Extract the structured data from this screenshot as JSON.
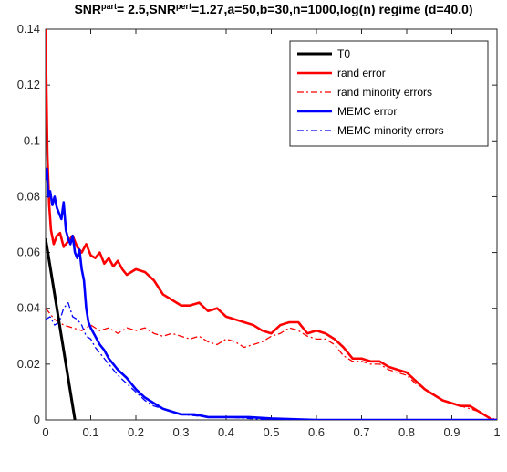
{
  "chart_data": {
    "type": "line",
    "title_parts": {
      "snr": "SNR",
      "part_sup": "part",
      "middle": "= 2.5,SNR",
      "perf_sup": "perf",
      "tail": "=1.27,a=50,b=30,n=1000,log(n) regime (d=40.0)"
    },
    "xlabel": "",
    "ylabel": "",
    "xlim": [
      0,
      1
    ],
    "ylim": [
      0,
      0.14
    ],
    "x_ticks": [
      0,
      0.1,
      0.2,
      0.3,
      0.4,
      0.5,
      0.6,
      0.7,
      0.8,
      0.9,
      1
    ],
    "x_tick_labels": [
      "0",
      "0.1",
      "0.2",
      "0.3",
      "0.4",
      "0.5",
      "0.6",
      "0.7",
      "0.8",
      "0.9",
      "1"
    ],
    "y_ticks": [
      0,
      0.02,
      0.04,
      0.06,
      0.08,
      0.1,
      0.12,
      0.14
    ],
    "y_tick_labels": [
      "0",
      "0.02",
      "0.04",
      "0.06",
      "0.08",
      "0.1",
      "0.12",
      "0.14"
    ],
    "grid": false,
    "legend_position": "top-right",
    "series": [
      {
        "name": "T0",
        "color": "#000000",
        "style": "solid",
        "x": [
          0,
          0.065
        ],
        "y": [
          0.065,
          0
        ]
      },
      {
        "name": "rand error",
        "color": "#ff0000",
        "style": "solid",
        "x": [
          0,
          0.004,
          0.008,
          0.012,
          0.018,
          0.025,
          0.032,
          0.04,
          0.05,
          0.06,
          0.07,
          0.08,
          0.09,
          0.1,
          0.11,
          0.12,
          0.13,
          0.14,
          0.15,
          0.16,
          0.17,
          0.18,
          0.2,
          0.22,
          0.24,
          0.26,
          0.28,
          0.3,
          0.32,
          0.34,
          0.36,
          0.38,
          0.4,
          0.42,
          0.44,
          0.46,
          0.48,
          0.5,
          0.52,
          0.54,
          0.56,
          0.58,
          0.6,
          0.62,
          0.64,
          0.66,
          0.68,
          0.7,
          0.72,
          0.74,
          0.76,
          0.78,
          0.8,
          0.82,
          0.84,
          0.86,
          0.88,
          0.9,
          0.92,
          0.94,
          0.96,
          0.98,
          0.99,
          1.0
        ],
        "y": [
          0.14,
          0.095,
          0.077,
          0.068,
          0.063,
          0.066,
          0.067,
          0.062,
          0.064,
          0.066,
          0.062,
          0.06,
          0.063,
          0.059,
          0.058,
          0.06,
          0.056,
          0.058,
          0.055,
          0.057,
          0.054,
          0.052,
          0.054,
          0.053,
          0.05,
          0.045,
          0.043,
          0.041,
          0.041,
          0.042,
          0.039,
          0.04,
          0.037,
          0.036,
          0.035,
          0.034,
          0.032,
          0.031,
          0.034,
          0.035,
          0.035,
          0.031,
          0.032,
          0.031,
          0.029,
          0.026,
          0.022,
          0.022,
          0.021,
          0.021,
          0.019,
          0.018,
          0.017,
          0.014,
          0.011,
          0.009,
          0.007,
          0.006,
          0.005,
          0.005,
          0.003,
          0.001,
          0,
          0
        ]
      },
      {
        "name": "rand minority errors",
        "color": "#ff0000",
        "style": "dashdot",
        "x": [
          0,
          0.01,
          0.02,
          0.04,
          0.06,
          0.08,
          0.1,
          0.12,
          0.14,
          0.16,
          0.18,
          0.2,
          0.22,
          0.24,
          0.26,
          0.28,
          0.3,
          0.32,
          0.34,
          0.36,
          0.38,
          0.4,
          0.42,
          0.44,
          0.46,
          0.48,
          0.5,
          0.52,
          0.54,
          0.56,
          0.58,
          0.6,
          0.62,
          0.64,
          0.66,
          0.68,
          0.7,
          0.72,
          0.74,
          0.76,
          0.78,
          0.8,
          0.82,
          0.84,
          0.86,
          0.88,
          0.9,
          0.92,
          0.94,
          0.96,
          0.98,
          1.0
        ],
        "y": [
          0.04,
          0.038,
          0.036,
          0.034,
          0.033,
          0.032,
          0.034,
          0.032,
          0.033,
          0.031,
          0.033,
          0.032,
          0.033,
          0.031,
          0.03,
          0.031,
          0.03,
          0.029,
          0.03,
          0.028,
          0.027,
          0.029,
          0.028,
          0.026,
          0.027,
          0.028,
          0.03,
          0.031,
          0.033,
          0.032,
          0.03,
          0.029,
          0.029,
          0.027,
          0.023,
          0.021,
          0.021,
          0.02,
          0.02,
          0.018,
          0.017,
          0.016,
          0.013,
          0.011,
          0.009,
          0.007,
          0.006,
          0.005,
          0.004,
          0.003,
          0.001,
          0
        ]
      },
      {
        "name": "MEMC error",
        "color": "#0000ff",
        "style": "solid",
        "x": [
          0,
          0.003,
          0.006,
          0.01,
          0.015,
          0.02,
          0.025,
          0.03,
          0.035,
          0.04,
          0.045,
          0.05,
          0.055,
          0.06,
          0.065,
          0.07,
          0.075,
          0.08,
          0.085,
          0.09,
          0.095,
          0.1,
          0.11,
          0.12,
          0.13,
          0.14,
          0.15,
          0.16,
          0.18,
          0.2,
          0.22,
          0.24,
          0.26,
          0.28,
          0.3,
          0.33,
          0.36,
          0.4,
          0.45,
          0.5,
          0.6,
          0.7,
          0.8,
          0.9,
          1.0
        ],
        "y": [
          0.086,
          0.09,
          0.08,
          0.082,
          0.077,
          0.08,
          0.076,
          0.074,
          0.072,
          0.078,
          0.068,
          0.065,
          0.063,
          0.066,
          0.06,
          0.058,
          0.061,
          0.054,
          0.05,
          0.04,
          0.035,
          0.033,
          0.03,
          0.027,
          0.025,
          0.022,
          0.02,
          0.018,
          0.015,
          0.011,
          0.008,
          0.006,
          0.004,
          0.003,
          0.002,
          0.002,
          0.001,
          0.001,
          0.001,
          0.0005,
          0,
          0,
          0,
          0,
          0
        ]
      },
      {
        "name": "MEMC minority errors",
        "color": "#0000ff",
        "style": "dashdot",
        "x": [
          0,
          0.01,
          0.02,
          0.03,
          0.04,
          0.05,
          0.06,
          0.07,
          0.08,
          0.09,
          0.1,
          0.11,
          0.12,
          0.13,
          0.14,
          0.15,
          0.16,
          0.18,
          0.2,
          0.22,
          0.24,
          0.26,
          0.28,
          0.3,
          0.33,
          0.36,
          0.4,
          0.45,
          0.5,
          0.6,
          0.7,
          0.8,
          0.9,
          1.0
        ],
        "y": [
          0.036,
          0.037,
          0.034,
          0.035,
          0.04,
          0.042,
          0.037,
          0.036,
          0.034,
          0.03,
          0.029,
          0.026,
          0.024,
          0.022,
          0.02,
          0.018,
          0.016,
          0.013,
          0.01,
          0.007,
          0.005,
          0.004,
          0.003,
          0.002,
          0.0015,
          0.001,
          0.001,
          0.0005,
          0,
          0,
          0,
          0,
          0,
          0
        ]
      }
    ]
  }
}
